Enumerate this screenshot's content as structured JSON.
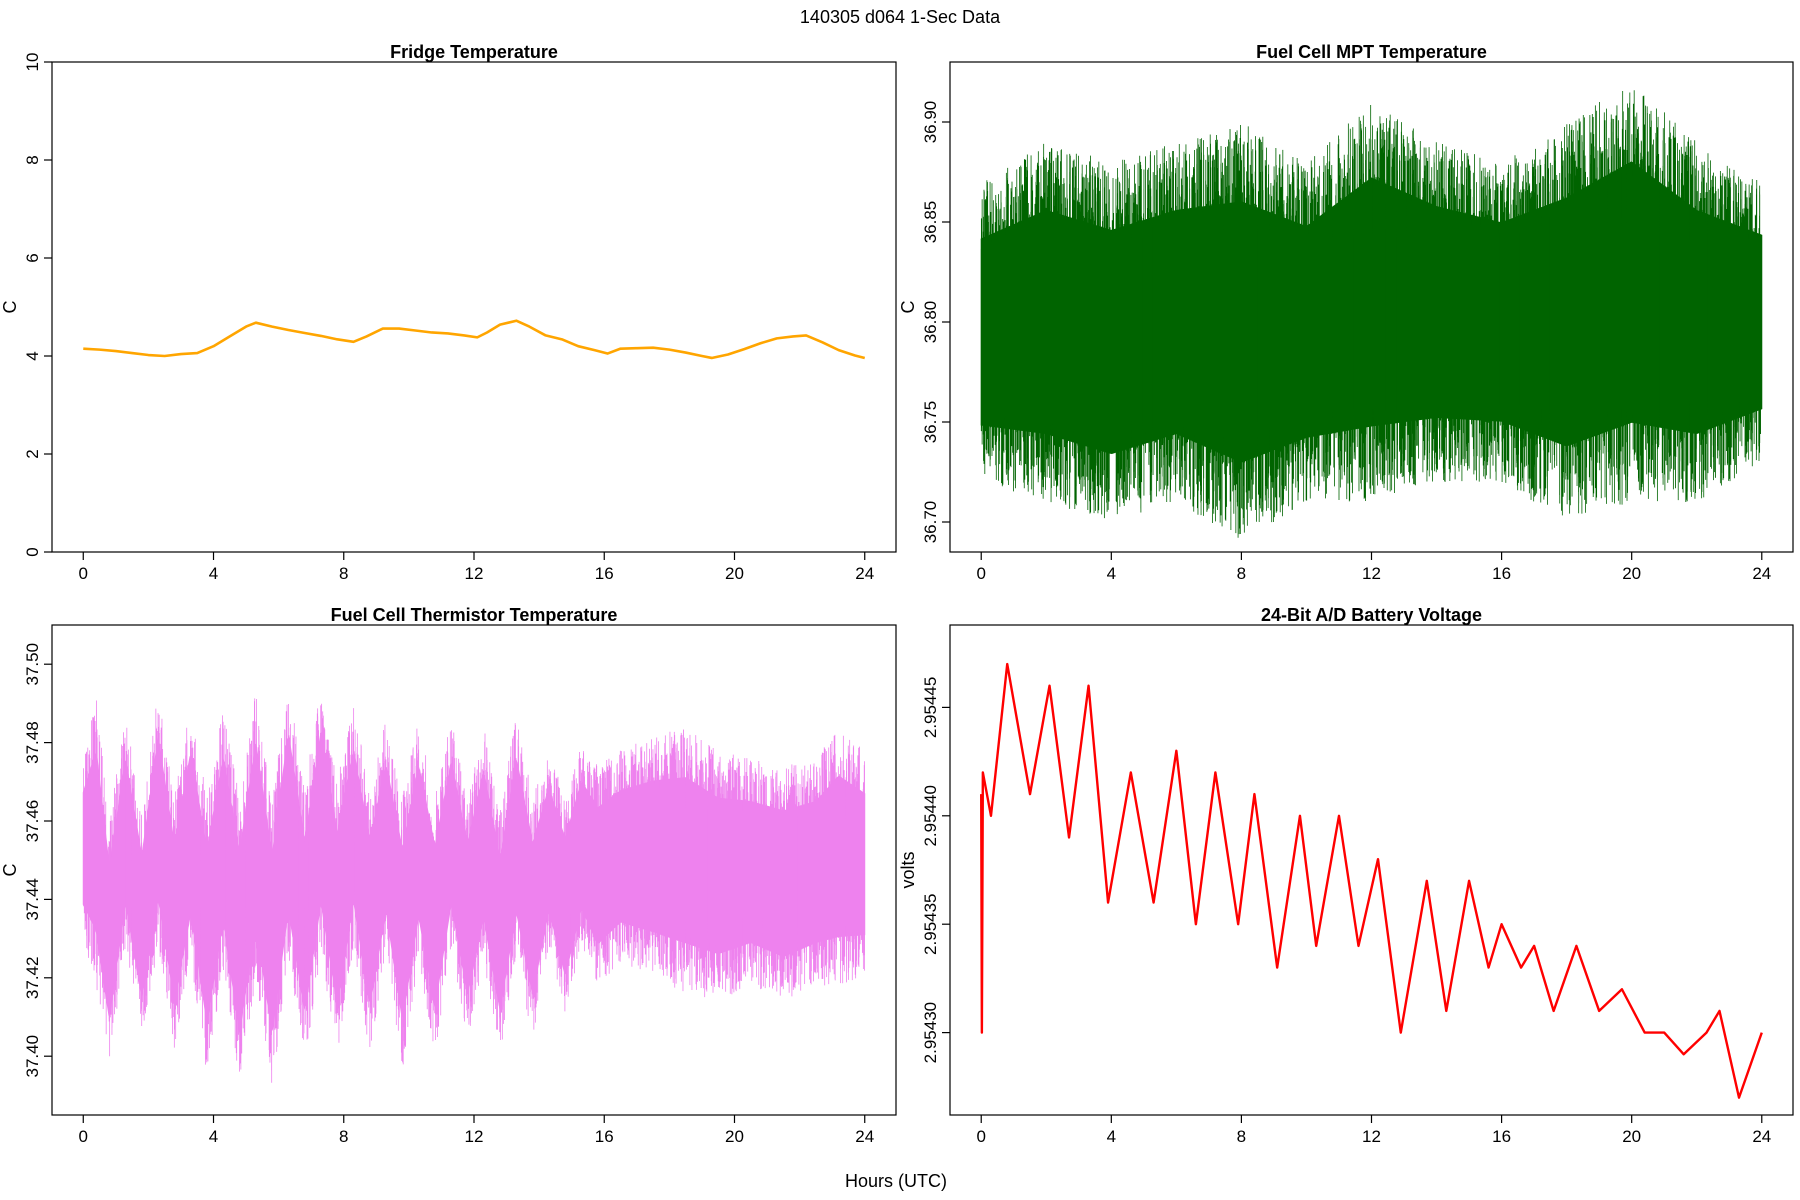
{
  "figure": {
    "title": "140305   d064   1-Sec Data",
    "xlabel": "Hours (UTC)"
  },
  "chart_data": [
    {
      "type": "line",
      "title": "Fridge Temperature",
      "xlabel": "",
      "ylabel": "C",
      "xlim": [
        0,
        24
      ],
      "ylim": [
        0,
        10
      ],
      "xticks": [
        0,
        4,
        8,
        12,
        16,
        20,
        24
      ],
      "xtick_labels": [
        "0",
        "4",
        "8",
        "12",
        "16",
        "20",
        "24"
      ],
      "yticks": [
        0,
        2,
        4,
        6,
        8,
        10
      ],
      "ytick_labels": [
        "0",
        "2",
        "4",
        "6",
        "8",
        "10"
      ],
      "color": "#FFA500",
      "grid": false,
      "series": [
        {
          "x": [
            0,
            0.5,
            1,
            1.5,
            2,
            2.5,
            3,
            3.5,
            4,
            4.5,
            5,
            5.3,
            5.8,
            6.3,
            6.8,
            7.3,
            7.8,
            8.3,
            8.7,
            9.2,
            9.7,
            10.2,
            10.7,
            11.2,
            11.7,
            12.1,
            12.4,
            12.8,
            13.3,
            13.7,
            14.2,
            14.7,
            15.2,
            15.7,
            16.1,
            16.5,
            17,
            17.5,
            18,
            18.5,
            19,
            19.3,
            19.8,
            20.3,
            20.8,
            21.3,
            21.8,
            22.2,
            22.7,
            23.2,
            23.7,
            24
          ],
          "y": [
            4.15,
            4.13,
            4.1,
            4.06,
            4.02,
            4.0,
            4.04,
            4.06,
            4.2,
            4.4,
            4.6,
            4.68,
            4.6,
            4.53,
            4.47,
            4.41,
            4.34,
            4.29,
            4.4,
            4.56,
            4.56,
            4.52,
            4.48,
            4.46,
            4.42,
            4.38,
            4.48,
            4.64,
            4.72,
            4.6,
            4.42,
            4.34,
            4.2,
            4.12,
            4.05,
            4.15,
            4.16,
            4.17,
            4.13,
            4.07,
            4.0,
            3.96,
            4.03,
            4.14,
            4.26,
            4.36,
            4.4,
            4.42,
            4.28,
            4.12,
            4.01,
            3.96
          ]
        }
      ]
    },
    {
      "type": "line",
      "title": "Fuel Cell MPT Temperature",
      "xlabel": "",
      "ylabel": "C",
      "xlim": [
        0,
        24
      ],
      "ylim": [
        36.685,
        36.93
      ],
      "xticks": [
        0,
        4,
        8,
        12,
        16,
        20,
        24
      ],
      "xtick_labels": [
        "0",
        "4",
        "8",
        "12",
        "16",
        "20",
        "24"
      ],
      "yticks": [
        36.7,
        36.75,
        36.8,
        36.85,
        36.9
      ],
      "ytick_labels": [
        "36.70",
        "36.75",
        "36.80",
        "36.85",
        "36.90"
      ],
      "color": "#006400",
      "grid": false,
      "series": [
        {
          "x": [
            0,
            2,
            4,
            6,
            8,
            10,
            12,
            14,
            16,
            18,
            20,
            22,
            24
          ],
          "y_max": [
            36.87,
            36.89,
            36.88,
            36.89,
            36.9,
            36.88,
            36.91,
            36.89,
            36.88,
            36.9,
            36.92,
            36.89,
            36.87
          ],
          "y_min": [
            36.72,
            36.71,
            36.7,
            36.71,
            36.69,
            36.71,
            36.71,
            36.72,
            36.72,
            36.7,
            36.71,
            36.71,
            36.73
          ]
        }
      ]
    },
    {
      "type": "line",
      "title": "Fuel Cell Thermistor Temperature",
      "xlabel": "",
      "ylabel": "C",
      "xlim": [
        0,
        24
      ],
      "ylim": [
        37.385,
        37.51
      ],
      "xticks": [
        0,
        4,
        8,
        12,
        16,
        20,
        24
      ],
      "xtick_labels": [
        "0",
        "4",
        "8",
        "12",
        "16",
        "20",
        "24"
      ],
      "yticks": [
        37.4,
        37.42,
        37.44,
        37.46,
        37.48,
        37.5
      ],
      "ytick_labels": [
        "37.40",
        "37.42",
        "37.44",
        "37.46",
        "37.48",
        "37.50"
      ],
      "color": "#EE82EE",
      "grid": false,
      "series": [
        {
          "x": [
            0,
            0.4,
            0.8,
            1.3,
            1.8,
            2.3,
            2.8,
            3.3,
            3.8,
            4.3,
            4.8,
            5.3,
            5.8,
            6.3,
            6.8,
            7.3,
            7.8,
            8.3,
            8.8,
            9.3,
            9.8,
            10.3,
            10.8,
            11.3,
            11.8,
            12.3,
            12.8,
            13.3,
            13.8,
            14.3,
            14.8,
            15.3,
            15.8,
            16.5,
            17.5,
            18.5,
            19.5,
            20.5,
            21.5,
            22.5,
            23.2,
            24
          ],
          "y_max": [
            37.476,
            37.492,
            37.46,
            37.487,
            37.462,
            37.494,
            37.466,
            37.49,
            37.466,
            37.489,
            37.466,
            37.494,
            37.465,
            37.496,
            37.468,
            37.496,
            37.47,
            37.49,
            37.468,
            37.486,
            37.466,
            37.486,
            37.466,
            37.486,
            37.466,
            37.484,
            37.462,
            37.488,
            37.466,
            37.478,
            37.466,
            37.48,
            37.474,
            37.478,
            37.482,
            37.484,
            37.478,
            37.476,
            37.474,
            37.476,
            37.484,
            37.478
          ],
          "y_min": [
            37.43,
            37.418,
            37.398,
            37.428,
            37.404,
            37.428,
            37.402,
            37.424,
            37.395,
            37.422,
            37.392,
            37.42,
            37.392,
            37.424,
            37.398,
            37.426,
            37.4,
            37.428,
            37.4,
            37.426,
            37.396,
            37.424,
            37.4,
            37.428,
            37.404,
            37.424,
            37.4,
            37.425,
            37.404,
            37.428,
            37.41,
            37.428,
            37.418,
            37.424,
            37.42,
            37.416,
            37.414,
            37.418,
            37.414,
            37.418,
            37.418,
            37.42
          ]
        }
      ]
    },
    {
      "type": "line",
      "title": "24-Bit A/D Battery Voltage",
      "xlabel": "",
      "ylabel": "volts",
      "xlim": [
        0,
        24
      ],
      "ylim": [
        2.954262,
        2.954488
      ],
      "xticks": [
        0,
        4,
        8,
        12,
        16,
        20,
        24
      ],
      "xtick_labels": [
        "0",
        "4",
        "8",
        "12",
        "16",
        "20",
        "24"
      ],
      "yticks": [
        2.9543,
        2.95435,
        2.9544,
        2.95445
      ],
      "ytick_labels": [
        "2.95430",
        "2.95435",
        "2.95440",
        "2.95445"
      ],
      "color": "#FF0000",
      "grid": false,
      "series": [
        {
          "x": [
            0,
            0.02,
            0.05,
            0.3,
            0.8,
            1.5,
            2.1,
            2.7,
            3.3,
            3.9,
            4.6,
            5.3,
            6.0,
            6.6,
            7.2,
            7.9,
            8.4,
            9.1,
            9.8,
            10.3,
            11.0,
            11.6,
            12.2,
            12.9,
            13.7,
            14.3,
            15.0,
            15.6,
            16.0,
            16.6,
            17.0,
            17.6,
            18.3,
            19.0,
            19.7,
            20.4,
            21.0,
            21.6,
            22.3,
            22.7,
            23.3,
            24
          ],
          "y": [
            2.95441,
            2.9543,
            2.95442,
            2.9544,
            2.95447,
            2.95441,
            2.95446,
            2.95439,
            2.95446,
            2.95436,
            2.95442,
            2.95436,
            2.95443,
            2.95435,
            2.95442,
            2.95435,
            2.95441,
            2.95433,
            2.9544,
            2.95434,
            2.9544,
            2.95434,
            2.95438,
            2.9543,
            2.95437,
            2.95431,
            2.95437,
            2.95433,
            2.95435,
            2.95433,
            2.95434,
            2.95431,
            2.95434,
            2.95431,
            2.95432,
            2.9543,
            2.9543,
            2.95429,
            2.9543,
            2.95431,
            2.95427,
            2.9543
          ]
        }
      ]
    }
  ]
}
